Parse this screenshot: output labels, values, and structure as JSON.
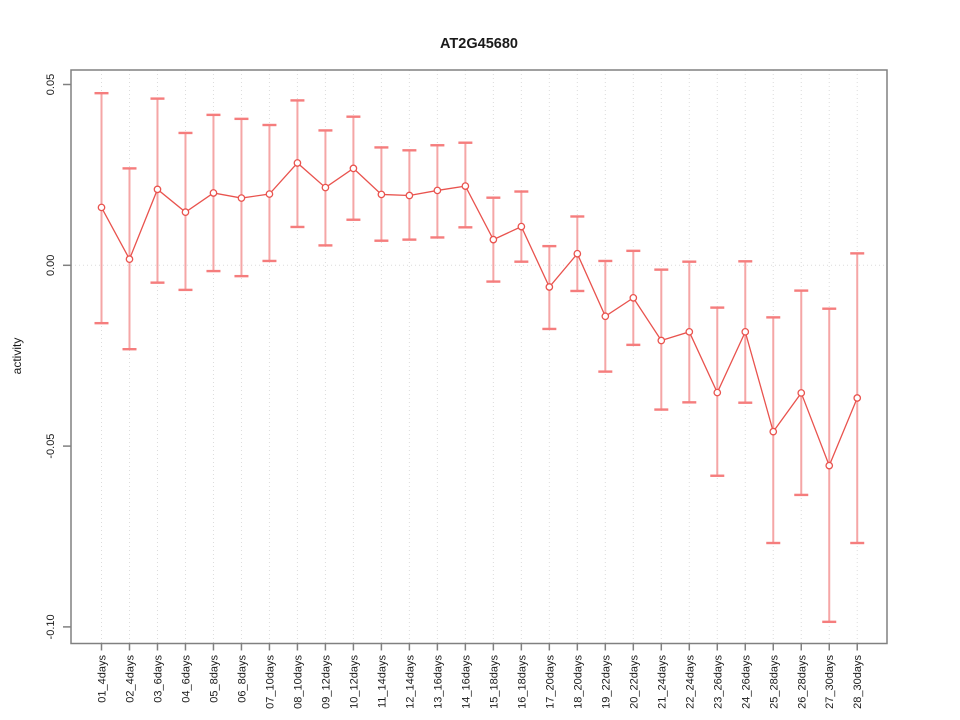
{
  "window": {
    "background": "#ffffff"
  },
  "chart_data": {
    "type": "line",
    "title": "AT2G45680",
    "xlabel": "",
    "ylabel": "activity",
    "legend": "none",
    "grid": "vertical dotted gridline at each category; horizontal dotted line at y=0",
    "marker": "open-circle",
    "error_bars": true,
    "ylim": [
      -0.1047,
      0.0537
    ],
    "yticks": [
      0.05,
      0.0,
      -0.05,
      -0.1
    ],
    "ytick_labels": [
      "0.05",
      "0.00",
      "-0.05",
      "-0.10"
    ],
    "categories": [
      "01_4days",
      "02_4days",
      "03_6days",
      "04_6days",
      "05_8days",
      "06_8days",
      "07_10days",
      "08_10days",
      "09_12days",
      "10_12days",
      "11_14days",
      "12_14days",
      "13_16days",
      "14_16days",
      "15_18days",
      "16_18days",
      "17_20days",
      "18_20days",
      "19_22days",
      "20_22days",
      "21_24days",
      "22_24days",
      "23_26days",
      "24_26days",
      "25_28days",
      "26_28days",
      "27_30days",
      "28_30days"
    ],
    "series": [
      {
        "name": "activity",
        "values": [
          0.016,
          0.0017,
          0.021,
          0.0147,
          0.02,
          0.0186,
          0.0197,
          0.0283,
          0.0215,
          0.0268,
          0.0196,
          0.0193,
          0.0207,
          0.0219,
          0.0071,
          0.0107,
          -0.006,
          0.0032,
          -0.0141,
          -0.009,
          -0.0208,
          -0.0184,
          -0.0352,
          -0.0184,
          -0.046,
          -0.0353,
          -0.0554,
          -0.0367
        ],
        "error_high": [
          0.0476,
          0.0268,
          0.0461,
          0.0366,
          0.0416,
          0.0405,
          0.0388,
          0.0456,
          0.0373,
          0.0411,
          0.0326,
          0.0318,
          0.0332,
          0.0339,
          0.0187,
          0.0204,
          0.0053,
          0.0135,
          0.0012,
          0.004,
          -0.0012,
          0.001,
          -0.0117,
          0.0011,
          -0.0144,
          -0.007,
          -0.012,
          0.0033
        ],
        "error_low": [
          -0.016,
          -0.0232,
          -0.0048,
          -0.0068,
          -0.0016,
          -0.003,
          0.0012,
          0.0106,
          0.0055,
          0.0126,
          0.0068,
          0.0071,
          0.0077,
          0.0105,
          -0.0045,
          0.001,
          -0.0176,
          -0.0071,
          -0.0294,
          -0.022,
          -0.0399,
          -0.0379,
          -0.0582,
          -0.038,
          -0.0768,
          -0.0635,
          -0.0986,
          -0.0768
        ]
      }
    ],
    "colors": {
      "point": "#e9534e",
      "line": "#e9534e",
      "error_bar": "#f5a6a6",
      "error_cap": "#f57d7d",
      "grid": "#dcdcdc",
      "axis": "#808080",
      "text": "#1a1a1a"
    }
  }
}
